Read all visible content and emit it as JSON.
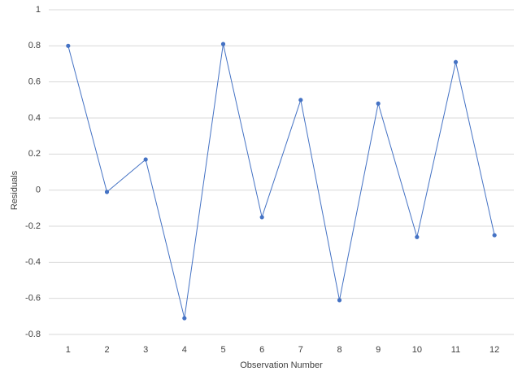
{
  "chart_data": {
    "type": "line",
    "x_label": "Observation Number",
    "y_label": "Residuals",
    "categories": [
      "1",
      "2",
      "3",
      "4",
      "5",
      "6",
      "7",
      "8",
      "9",
      "10",
      "11",
      "12"
    ],
    "values": [
      0.8,
      -0.01,
      0.17,
      -0.71,
      0.81,
      -0.15,
      0.5,
      -0.61,
      0.48,
      -0.26,
      0.71,
      -0.25
    ],
    "color": "#4472c4",
    "ylim": [
      -0.8,
      1
    ],
    "yticks": [
      -0.8,
      -0.6,
      -0.4,
      -0.2,
      0,
      0.2,
      0.4,
      0.6,
      0.8,
      1
    ],
    "grid": true
  }
}
